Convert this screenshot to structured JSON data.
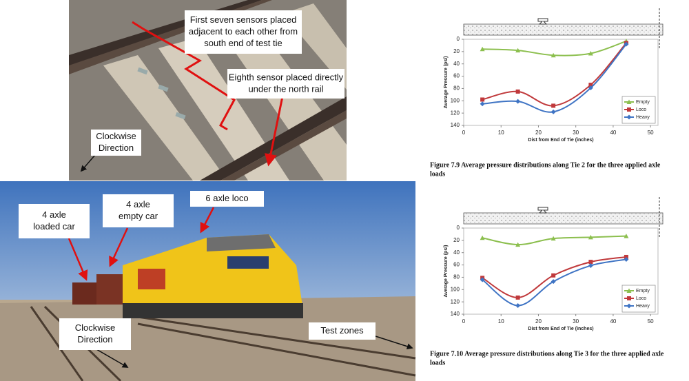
{
  "photos": {
    "top": {
      "callouts": [
        {
          "lines": [
            "First seven sensors placed",
            "adjacent to each other from",
            "south end of test tie"
          ]
        },
        {
          "lines": [
            "Eighth sensor placed directly",
            "under the north rail"
          ]
        },
        {
          "lines": [
            "Clockwise",
            "Direction"
          ]
        }
      ]
    },
    "bottom": {
      "callouts": [
        {
          "lines": [
            "4 axle",
            "loaded car"
          ]
        },
        {
          "lines": [
            "4 axle",
            "empty car"
          ]
        },
        {
          "lines": [
            "6 axle loco"
          ]
        },
        {
          "lines": [
            "Clockwise",
            "Direction"
          ]
        },
        {
          "lines": [
            "Test zones"
          ]
        }
      ]
    }
  },
  "chart_data": [
    {
      "type": "line",
      "caption": [
        "Figure 7.9 Average pressure distributions along Tie 2 for the three applied axle",
        "loads"
      ],
      "y_label": "Average Pressure (psi)",
      "x_label": "Dist from End of Tie (inches)",
      "x": [
        5,
        14.5,
        24,
        34,
        43.5
      ],
      "xlim": [
        0,
        52
      ],
      "xticks": [
        0,
        10,
        20,
        30,
        40,
        50
      ],
      "ylim": [
        0,
        140
      ],
      "yticks": [
        0,
        20,
        40,
        60,
        80,
        100,
        120,
        140
      ],
      "y_reversed": true,
      "legend": "bottom-right",
      "series": [
        {
          "name": "Empty",
          "color": "#8cbf4e",
          "marker": "triangle",
          "values": [
            16,
            18,
            26,
            23,
            3
          ]
        },
        {
          "name": "Loco",
          "color": "#c0393b",
          "marker": "square",
          "values": [
            98,
            85,
            108,
            74,
            6
          ]
        },
        {
          "name": "Heavy",
          "color": "#3f74c4",
          "marker": "diamond",
          "values": [
            105,
            101,
            118,
            79,
            8
          ]
        }
      ]
    },
    {
      "type": "line",
      "caption": [
        "Figure 7.10 Average pressure distributions along Tie 3 for the three applied axle",
        "loads"
      ],
      "y_label": "Average Pressure (psi)",
      "x_label": "Dist from End of Tie (inches)",
      "x": [
        5,
        14.5,
        24,
        34,
        43.5
      ],
      "xlim": [
        0,
        52
      ],
      "xticks": [
        0,
        10,
        20,
        30,
        40,
        50
      ],
      "ylim": [
        0,
        140
      ],
      "yticks": [
        0,
        20,
        40,
        60,
        80,
        100,
        120,
        140
      ],
      "y_reversed": true,
      "legend": "bottom-right",
      "series": [
        {
          "name": "Empty",
          "color": "#8cbf4e",
          "marker": "triangle",
          "values": [
            16,
            27,
            17,
            15,
            13
          ]
        },
        {
          "name": "Loco",
          "color": "#c0393b",
          "marker": "square",
          "values": [
            81,
            113,
            77,
            55,
            47
          ]
        },
        {
          "name": "Heavy",
          "color": "#3f74c4",
          "marker": "diamond",
          "values": [
            84,
            126,
            87,
            61,
            51
          ]
        }
      ]
    }
  ]
}
